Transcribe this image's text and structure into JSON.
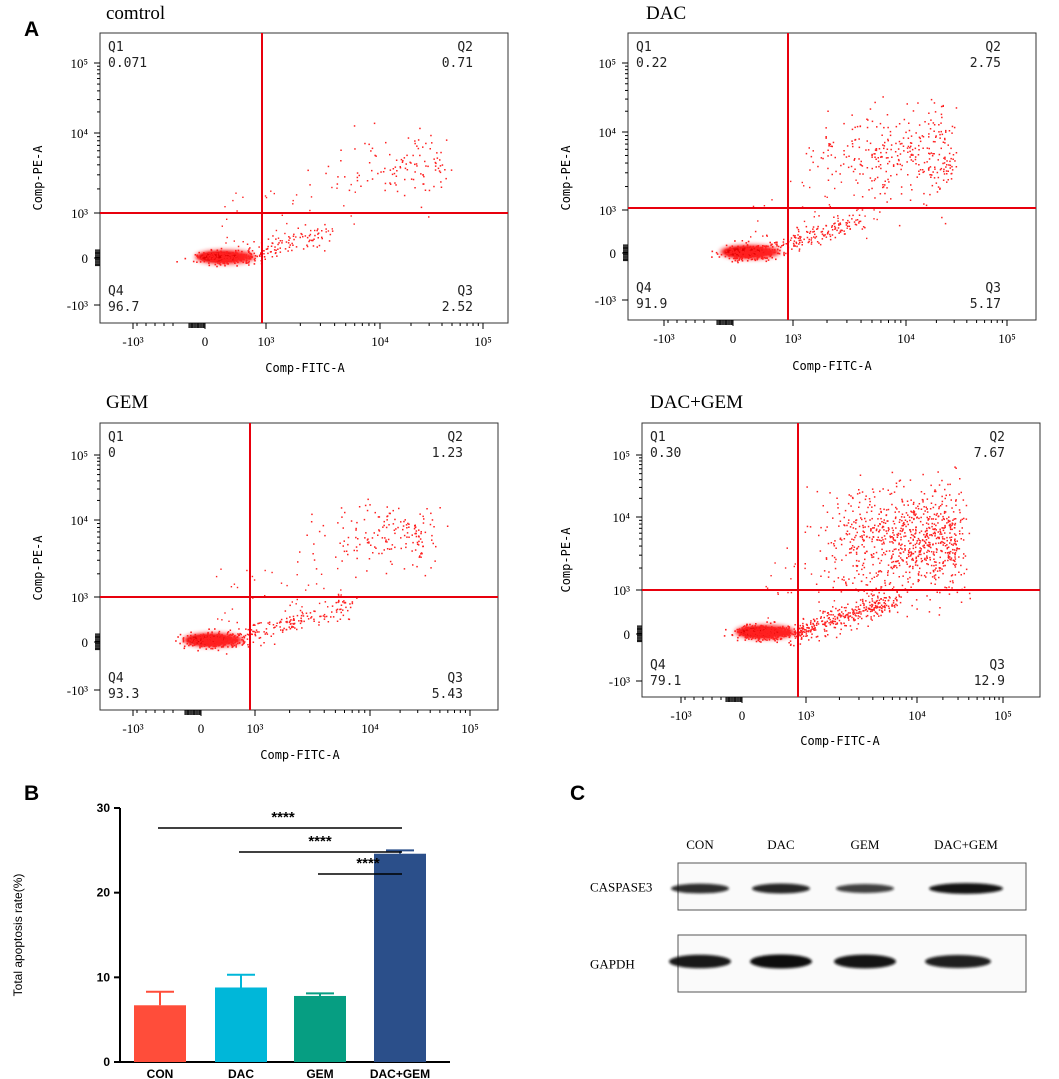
{
  "panels": {
    "a": "A",
    "b": "B",
    "c": "C"
  },
  "flow_common": {
    "x_label": "Comp-FITC-A",
    "y_label": "Comp-PE-A",
    "x_ticks": [
      "-10³",
      "0",
      "10³",
      "10⁴",
      "10⁵"
    ],
    "y_ticks": [
      "10⁵",
      "10⁴",
      "10³",
      "0",
      "-10³"
    ],
    "quadrant_names": [
      "Q1",
      "Q2",
      "Q3",
      "Q4"
    ]
  },
  "chart_data": [
    {
      "type": "scatter",
      "title": "comtrol",
      "xlabel": "Comp-FITC-A",
      "ylabel": "Comp-PE-A",
      "quadrants": {
        "Q1": "0.071",
        "Q2": "0.71",
        "Q3": "2.52",
        "Q4": "96.7"
      }
    },
    {
      "type": "scatter",
      "title": "DAC",
      "xlabel": "Comp-FITC-A",
      "ylabel": "Comp-PE-A",
      "quadrants": {
        "Q1": "0.22",
        "Q2": "2.75",
        "Q3": "5.17",
        "Q4": "91.9"
      }
    },
    {
      "type": "scatter",
      "title": "GEM",
      "xlabel": "Comp-FITC-A",
      "ylabel": "Comp-PE-A",
      "quadrants": {
        "Q1": "0",
        "Q2": "1.23",
        "Q3": "5.43",
        "Q4": "93.3"
      }
    },
    {
      "type": "scatter",
      "title": "DAC+GEM",
      "xlabel": "Comp-FITC-A",
      "ylabel": "Comp-PE-A",
      "quadrants": {
        "Q1": "0.30",
        "Q2": "7.67",
        "Q3": "12.9",
        "Q4": "79.1"
      }
    },
    {
      "type": "bar",
      "title": "",
      "categories": [
        "CON",
        "DAC",
        "GEM",
        "DAC+GEM"
      ],
      "values": [
        6.7,
        8.8,
        7.8,
        24.6
      ],
      "errors": [
        1.6,
        1.5,
        0.3,
        0.4
      ],
      "colors": [
        "#ff4d3a",
        "#00b7d9",
        "#069e82",
        "#2b4f8a"
      ],
      "ylabel": "Total apoptosis rate(%)",
      "xlabel": "",
      "ylim": [
        0,
        30
      ],
      "yticks": [
        0,
        10,
        20,
        30
      ],
      "significance": [
        {
          "from": "CON",
          "to": "DAC+GEM",
          "label": "****"
        },
        {
          "from": "DAC",
          "to": "DAC+GEM",
          "label": "****"
        },
        {
          "from": "GEM",
          "to": "DAC+GEM",
          "label": "****"
        }
      ]
    }
  ],
  "western_blot": {
    "lanes": [
      "CON",
      "DAC",
      "GEM",
      "DAC+GEM"
    ],
    "rows": [
      {
        "label": "CASPASE3",
        "intensity": [
          0.75,
          0.8,
          0.6,
          0.95
        ]
      },
      {
        "label": "GAPDH",
        "intensity": [
          0.9,
          1.0,
          0.95,
          0.85
        ]
      }
    ]
  },
  "colors": {
    "gate": "#e8000d",
    "dots": "#ff2020",
    "axis": "#000000"
  }
}
